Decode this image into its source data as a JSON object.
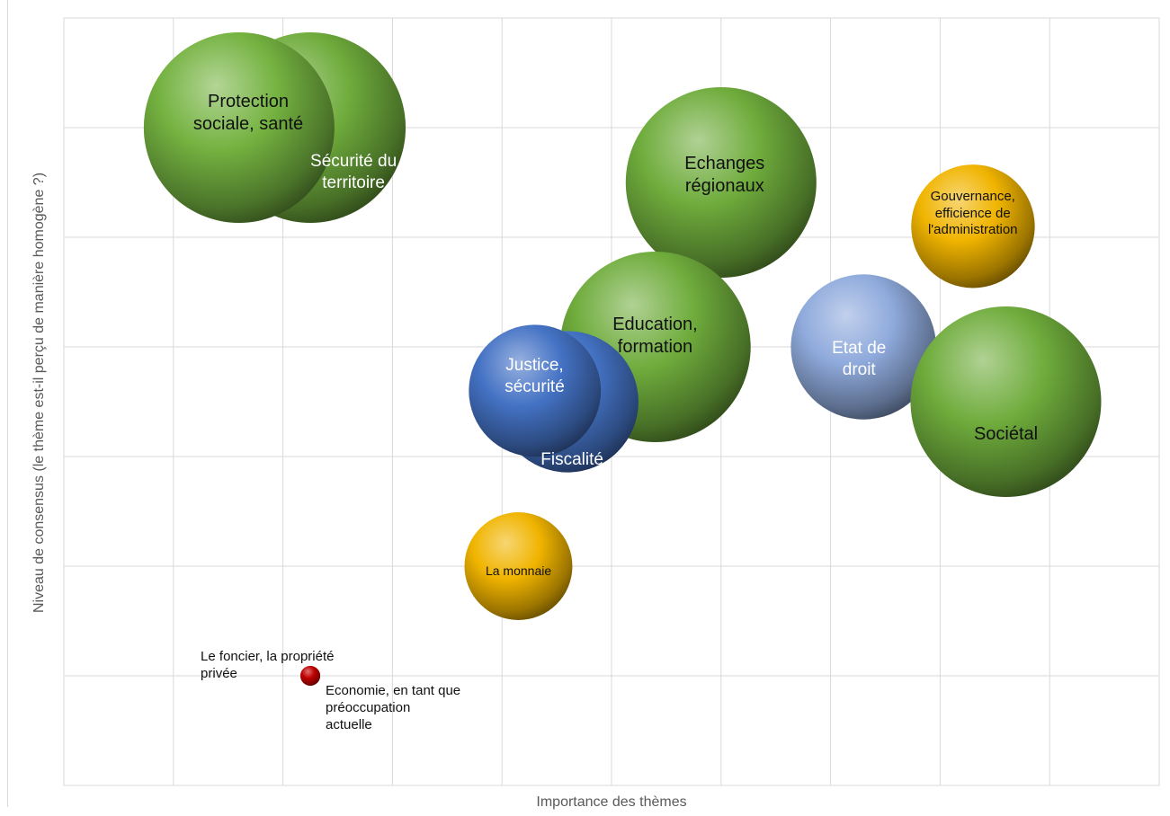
{
  "chart_data": {
    "type": "bubble",
    "xlabel": "Importance des thèmes",
    "ylabel": "Niveau de consensus (le thème est-il perçu de manière homogène ?)",
    "xlim": [
      0,
      10
    ],
    "ylim": [
      0,
      7
    ],
    "grid": true,
    "series": [
      {
        "label": "Sécurité du\nterritoire",
        "x": 2.25,
        "y": 6.0,
        "size": 100,
        "color": "#6fac3c"
      },
      {
        "label": "Protection\nsociale, santé",
        "x": 1.6,
        "y": 6.0,
        "size": 100,
        "color": "#74b240"
      },
      {
        "label": "Echanges\nrégionaux",
        "x": 6.0,
        "y": 5.5,
        "size": 100,
        "color": "#6fac3c"
      },
      {
        "label": "Gouvernance,\nefficience de\nl'administration",
        "x": 8.3,
        "y": 5.1,
        "size": 42,
        "color": "#f0b400"
      },
      {
        "label": "Etat de\ndroit",
        "x": 7.3,
        "y": 4.0,
        "size": 58,
        "color": "#8faadc"
      },
      {
        "label": "Education,\nformation",
        "x": 5.4,
        "y": 4.0,
        "size": 100,
        "color": "#6fac3c"
      },
      {
        "label": "Fiscalité",
        "x": 4.6,
        "y": 3.5,
        "size": 55,
        "color": "#4472c4"
      },
      {
        "label": "Justice,\nsécurité",
        "x": 4.3,
        "y": 3.6,
        "size": 48,
        "color": "#4472c4"
      },
      {
        "label": "Sociétal",
        "x": 8.6,
        "y": 3.5,
        "size": 100,
        "color": "#6fac3c"
      },
      {
        "label": "La monnaie",
        "x": 4.15,
        "y": 2.0,
        "size": 32,
        "color": "#f0b400"
      },
      {
        "label": "Le foncier, la propriété\nprivée",
        "x": 2.25,
        "y": 1.0,
        "size": 0.9,
        "color": "#c00000"
      },
      {
        "label": "Economie, en tant que\npréoccupation\nactuelle",
        "x": 2.25,
        "y": 1.0,
        "size": 0.9,
        "color": "#c00000"
      }
    ]
  }
}
